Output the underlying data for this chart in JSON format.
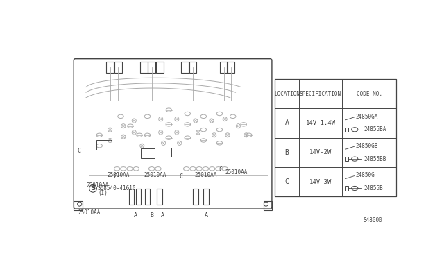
{
  "bg_color": "#ffffff",
  "line_color": "#aaaaaa",
  "dark_line": "#444444",
  "diagram_num": "S48000",
  "table": {
    "headers": [
      "LOCATION",
      "SPECIFICATION",
      "CODE NO."
    ],
    "rows": [
      {
        "loc": "A",
        "spec": "14V-1.4W",
        "codes": [
          "24850GA",
          "24855BA"
        ]
      },
      {
        "loc": "B",
        "spec": "14V-2W",
        "codes": [
          "24850GB",
          "24855BB"
        ]
      },
      {
        "loc": "C",
        "spec": "14V-3W",
        "codes": [
          "24850G",
          "24855B"
        ]
      }
    ]
  },
  "s_label": "S08540-41610",
  "s_sub": "(I)",
  "cluster_labels": [
    [
      55,
      290,
      "25010AA"
    ],
    [
      95,
      270,
      "25010AA"
    ],
    [
      163,
      270,
      "25010AA"
    ],
    [
      258,
      270,
      "25010AA"
    ],
    [
      316,
      265,
      "25010AA"
    ],
    [
      40,
      340,
      "25010AA"
    ]
  ],
  "top_c_labels": [
    [
      110,
      272,
      "C"
    ],
    [
      233,
      272,
      "C"
    ],
    [
      307,
      260,
      "C"
    ]
  ],
  "bottom_labels": [
    [
      148,
      345,
      "A"
    ],
    [
      178,
      345,
      "B"
    ],
    [
      198,
      345,
      "A"
    ],
    [
      280,
      345,
      "A"
    ]
  ],
  "left_c_label": [
    42,
    225,
    "C"
  ]
}
